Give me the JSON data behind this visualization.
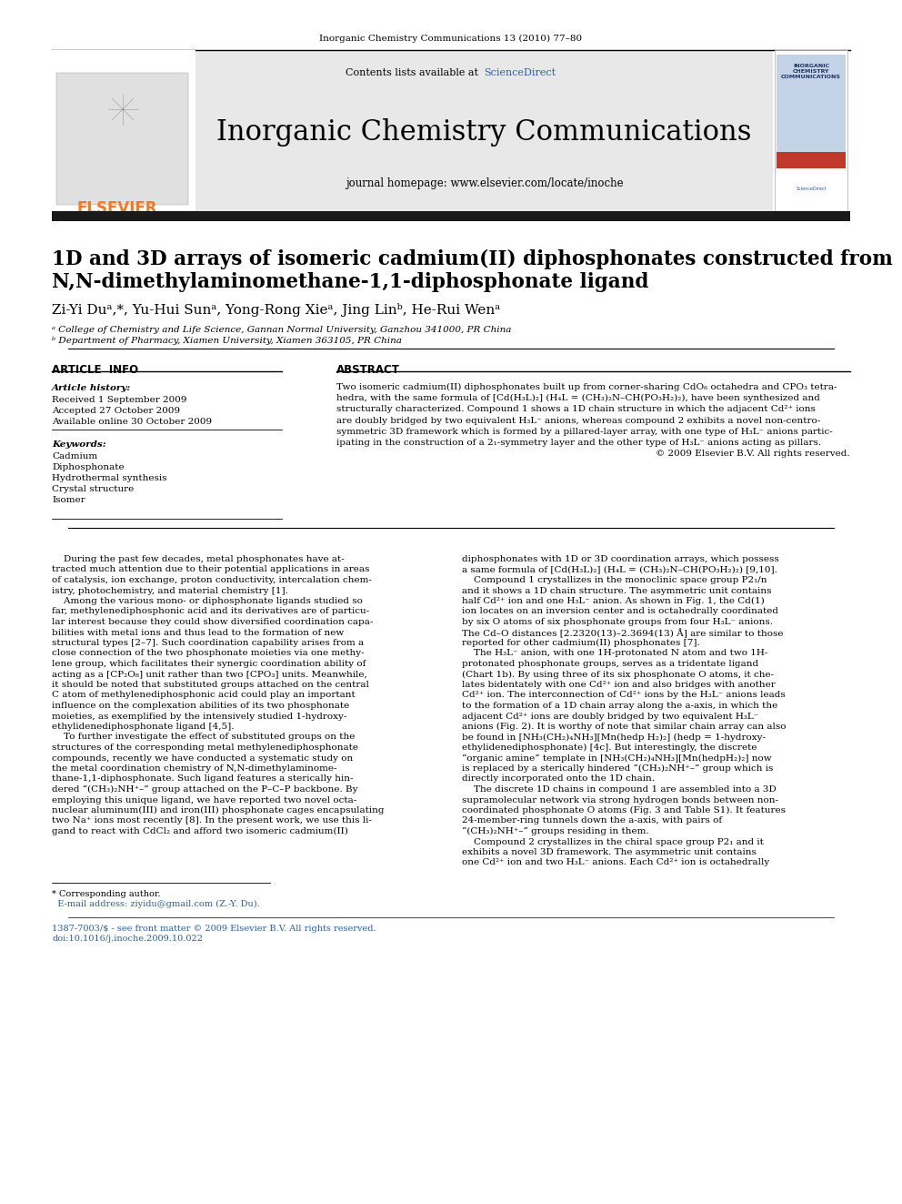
{
  "page_bg": "#ffffff",
  "top_journal_ref": "Inorganic Chemistry Communications 13 (2010) 77–80",
  "journal_title": "Inorganic Chemistry Communications",
  "journal_subtitle": "journal homepage: www.elsevier.com/locate/inoche",
  "contents_line_plain": "Contents lists available at ",
  "contents_line_blue": "ScienceDirect",
  "sciencedirect_color": "#2b5ea7",
  "header_bg": "#e8e8e8",
  "elsevier_color": "#f47920",
  "dark_bar_color": "#1a1a1a",
  "article_title_line1": "1D and 3D arrays of isomeric cadmium(II) diphosphonates constructed from",
  "article_title_line2": "N,N-dimethylaminomethane-1,1-diphosphonate ligand",
  "authors": "Zi-Yi Duᵃ,*, Yu-Hui Sunᵃ, Yong-Rong Xieᵃ, Jing Linᵇ, He-Rui Wenᵃ",
  "affiliation_a": "ᵃ College of Chemistry and Life Science, Gannan Normal University, Ganzhou 341000, PR China",
  "affiliation_b": "ᵇ Department of Pharmacy, Xiamen University, Xiamen 363105, PR China",
  "article_info_title": "ARTICLE  INFO",
  "article_history_title": "Article history:",
  "received": "Received 1 September 2009",
  "accepted": "Accepted 27 October 2009",
  "available": "Available online 30 October 2009",
  "keywords_title": "Keywords:",
  "keywords": [
    "Cadmium",
    "Diphosphonate",
    "Hydrothermal synthesis",
    "Crystal structure",
    "Isomer"
  ],
  "abstract_title": "ABSTRACT",
  "footer_color": "#2b5ea7",
  "col1_lines": [
    "    During the past few decades, metal phosphonates have at-",
    "tracted much attention due to their potential applications in areas",
    "of catalysis, ion exchange, proton conductivity, intercalation chem-",
    "istry, photochemistry, and material chemistry [1].",
    "    Among the various mono- or diphosphonate ligands studied so",
    "far, methylenediphosphonic acid and its derivatives are of particu-",
    "lar interest because they could show diversified coordination capa-",
    "bilities with metal ions and thus lead to the formation of new",
    "structural types [2–7]. Such coordination capability arises from a",
    "close connection of the two phosphonate moieties via one methy-",
    "lene group, which facilitates their synergic coordination ability of",
    "acting as a [CP₂O₈] unit rather than two [CPO₃] units. Meanwhile,",
    "it should be noted that substituted groups attached on the central",
    "C atom of methylenediphosphonic acid could play an important",
    "influence on the complexation abilities of its two phosphonate",
    "moieties, as exemplified by the intensively studied 1-hydroxy-",
    "ethylidenediphosphonate ligand [4,5].",
    "    To further investigate the effect of substituted groups on the",
    "structures of the corresponding metal methylenediphosphonate",
    "compounds, recently we have conducted a systematic study on",
    "the metal coordination chemistry of N,N-dimethylaminome-",
    "thane-1,1-diphosphonate. Such ligand features a sterically hin-",
    "dered “(CH₃)₂NH⁺–” group attached on the P–C–P backbone. By",
    "employing this unique ligand, we have reported two novel octa-",
    "nuclear aluminum(III) and iron(III) phosphonate cages encapsulating",
    "two Na⁺ ions most recently [8]. In the present work, we use this li-",
    "gand to react with CdCl₂ and afford two isomeric cadmium(II)"
  ],
  "col2_lines": [
    "diphosphonates with 1D or 3D coordination arrays, which possess",
    "a same formula of [Cd(H₃L)₂] (H₄L = (CH₃)₂N–CH(PO₃H₂)₂) [9,10].",
    "    Compound 1 crystallizes in the monoclinic space group P2₁/n",
    "and it shows a 1D chain structure. The asymmetric unit contains",
    "half Cd²⁺ ion and one H₃L⁻ anion. As shown in Fig. 1, the Cd(1)",
    "ion locates on an inversion center and is octahedrally coordinated",
    "by six O atoms of six phosphonate groups from four H₃L⁻ anions.",
    "The Cd–O distances [2.2320(13)–2.3694(13) Å] are similar to those",
    "reported for other cadmium(II) phosphonates [7].",
    "    The H₃L⁻ anion, with one 1H-protonated N atom and two 1H-",
    "protonated phosphonate groups, serves as a tridentate ligand",
    "(Chart 1b). By using three of its six phosphonate O atoms, it che-",
    "lates bidentately with one Cd²⁺ ion and also bridges with another",
    "Cd²⁺ ion. The interconnection of Cd²⁺ ions by the H₃L⁻ anions leads",
    "to the formation of a 1D chain array along the a-axis, in which the",
    "adjacent Cd²⁺ ions are doubly bridged by two equivalent H₃L⁻",
    "anions (Fig. 2). It is worthy of note that similar chain array can also",
    "be found in [NH₃(CH₂)₄NH₃][Mn(hedp H₂)₂] (hedp = 1-hydroxy-",
    "ethylidenediphosphonate) [4c]. But interestingly, the discrete",
    "“organic amine” template in [NH₃(CH₂)₄NH₃][Mn(hedpH₂)₂] now",
    "is replaced by a sterically hindered “(CH₃)₂NH⁺–” group which is",
    "directly incorporated onto the 1D chain.",
    "    The discrete 1D chains in compound 1 are assembled into a 3D",
    "supramolecular network via strong hydrogen bonds between non-",
    "coordinated phosphonate O atoms (Fig. 3 and Table S1). It features",
    "24-member-ring tunnels down the a-axis, with pairs of",
    "“(CH₃)₂NH⁺–” groups residing in them.",
    "    Compound 2 crystallizes in the chiral space group P2₁ and it",
    "exhibits a novel 3D framework. The asymmetric unit contains",
    "one Cd²⁺ ion and two H₃L⁻ anions. Each Cd²⁺ ion is octahedrally"
  ],
  "abstract_lines": [
    "Two isomeric cadmium(II) diphosphonates built up from corner-sharing CdO₆ octahedra and CPO₃ tetra-",
    "hedra, with the same formula of [Cd(H₃L)₂] (H₄L = (CH₃)₂N–CH(PO₃H₂)₂), have been synthesized and",
    "structurally characterized. Compound 1 shows a 1D chain structure in which the adjacent Cd²⁺ ions",
    "are doubly bridged by two equivalent H₃L⁻ anions, whereas compound 2 exhibits a novel non-centro-",
    "symmetric 3D framework which is formed by a pillared-layer array, with one type of H₃L⁻ anions partic-",
    "ipating in the construction of a 2₁-symmetry layer and the other type of H₃L⁻ anions acting as pillars.",
    "© 2009 Elsevier B.V. All rights reserved."
  ]
}
